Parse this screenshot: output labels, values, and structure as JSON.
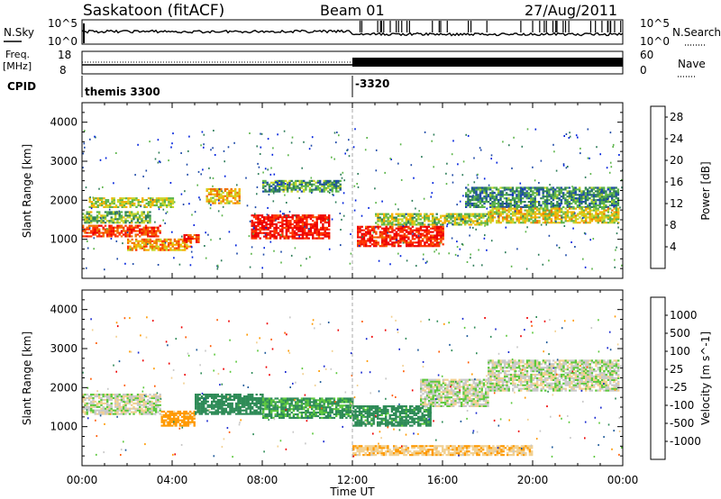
{
  "header": {
    "station": "Saskatoon (fitACF)",
    "beam": "Beam 01",
    "date": "27/Aug/2011"
  },
  "strip": {
    "nsky_label": "N.Sky",
    "nsearch_label": "N.Search",
    "freq_label_1": "Freq.",
    "freq_label_2": "[MHz]",
    "nave_label": "Nave",
    "cpid_label": "CPID",
    "cpid_1": "themis 3300",
    "cpid_2": "-3320",
    "nsky_ticks": [
      "10^5",
      "10^0"
    ],
    "nsearch_ticks": [
      "10^5",
      "10^0"
    ],
    "freq_ticks": [
      "18",
      "8"
    ],
    "nave_ticks": [
      "60",
      "0"
    ]
  },
  "colors": {
    "power": [
      "#0022dd",
      "#1e4aa8",
      "#2e7d5a",
      "#5cb54a",
      "#c8d62a",
      "#f5b000",
      "#f07000",
      "#ff3300",
      "#ee0000"
    ],
    "velocity": [
      "#ee0000",
      "#ff5a00",
      "#ff9900",
      "#f2d090",
      "#c8c8c8",
      "#5cc83c",
      "#2e8b57",
      "#1e5a9a",
      "#1a2ad0"
    ]
  },
  "chart_data": [
    {
      "type": "heatmap",
      "name": "Power",
      "ylabel": "Slant Range [km]",
      "ylim": [
        0,
        4500
      ],
      "yticks": [
        "1000",
        "2000",
        "3000",
        "4000"
      ],
      "xlim": [
        "00:00",
        "24:00"
      ],
      "xticks": [
        "00:00",
        "04:00",
        "08:00",
        "12:00",
        "16:00",
        "20:00",
        "00:00"
      ],
      "colorbar": {
        "label": "Power [dB]",
        "ticks": [
          "4",
          "8",
          "12",
          "16",
          "20",
          "24",
          "28"
        ],
        "range": [
          0,
          30
        ]
      },
      "bands": [
        {
          "t0": 0.0,
          "t1": 3.5,
          "r0": 1050,
          "r1": 1350,
          "value": 25
        },
        {
          "t0": 0.0,
          "t1": 3.0,
          "r0": 1400,
          "r1": 1700,
          "value": 12
        },
        {
          "t0": 0.3,
          "t1": 4.0,
          "r0": 1800,
          "r1": 2050,
          "value": 15
        },
        {
          "t0": 2.0,
          "t1": 4.8,
          "r0": 700,
          "r1": 1000,
          "value": 20
        },
        {
          "t0": 4.5,
          "t1": 5.2,
          "r0": 900,
          "r1": 1100,
          "value": 27
        },
        {
          "t0": 5.5,
          "t1": 7.0,
          "r0": 1900,
          "r1": 2300,
          "value": 18
        },
        {
          "t0": 7.5,
          "t1": 11.0,
          "r0": 1000,
          "r1": 1600,
          "value": 28
        },
        {
          "t0": 8.0,
          "t1": 11.5,
          "r0": 2200,
          "r1": 2500,
          "value": 10
        },
        {
          "t0": 12.2,
          "t1": 16.0,
          "r0": 800,
          "r1": 1300,
          "value": 27
        },
        {
          "t0": 13.0,
          "t1": 18.0,
          "r0": 1350,
          "r1": 1650,
          "value": 14
        },
        {
          "t0": 17.0,
          "t1": 23.8,
          "r0": 1800,
          "r1": 2300,
          "value": 9
        },
        {
          "t0": 18.0,
          "t1": 23.8,
          "r0": 1400,
          "r1": 1800,
          "value": 16
        }
      ]
    },
    {
      "type": "heatmap",
      "name": "Velocity",
      "ylabel": "Slant Range [km]",
      "xlabel": "Time UT",
      "ylim": [
        0,
        4500
      ],
      "yticks": [
        "1000",
        "2000",
        "3000",
        "4000"
      ],
      "xlim": [
        "00:00",
        "24:00"
      ],
      "xticks": [
        "00:00",
        "04:00",
        "08:00",
        "12:00",
        "16:00",
        "20:00",
        "00:00"
      ],
      "colorbar": {
        "label": "Velocity [m s^-1]",
        "ticks": [
          "-1000",
          "-500",
          "-100",
          "-25",
          "25",
          "100",
          "500",
          "1000"
        ]
      },
      "bands": [
        {
          "t0": 0.0,
          "t1": 3.5,
          "r0": 1300,
          "r1": 1800,
          "value": 0
        },
        {
          "t0": 3.5,
          "t1": 5.0,
          "r0": 1000,
          "r1": 1400,
          "value": -150
        },
        {
          "t0": 5.0,
          "t1": 8.0,
          "r0": 1300,
          "r1": 1800,
          "value": 200
        },
        {
          "t0": 8.0,
          "t1": 12.0,
          "r0": 1200,
          "r1": 1700,
          "value": 120
        },
        {
          "t0": 12.0,
          "t1": 15.5,
          "r0": 1000,
          "r1": 1500,
          "value": 150
        },
        {
          "t0": 15.0,
          "t1": 18.0,
          "r0": 1500,
          "r1": 2200,
          "value": 0
        },
        {
          "t0": 18.0,
          "t1": 23.8,
          "r0": 1900,
          "r1": 2700,
          "value": 0
        },
        {
          "t0": 12.0,
          "t1": 20.0,
          "r0": 250,
          "r1": 500,
          "value": -80
        }
      ]
    }
  ]
}
